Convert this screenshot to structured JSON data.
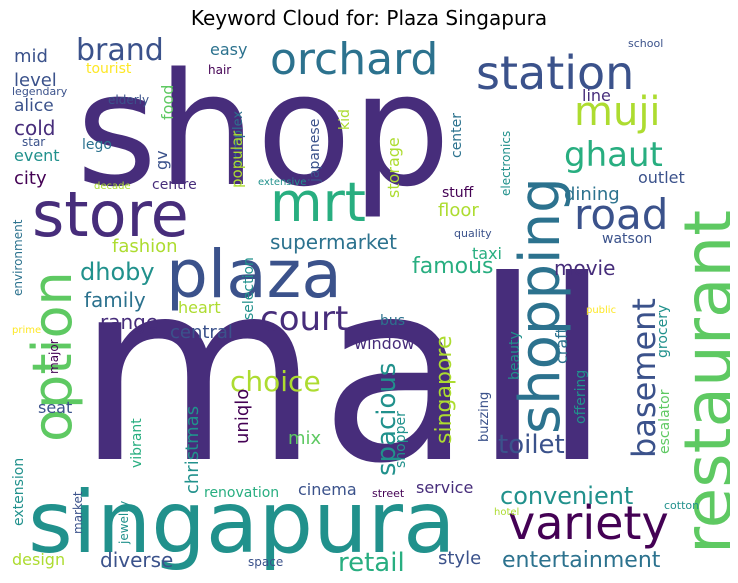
{
  "title": "Keyword Cloud for: Plaza Singapura",
  "colors": {
    "deep_purple": "#440154",
    "indigo": "#472d7b",
    "dark_blue": "#3b528b",
    "steel_blue": "#2c728e",
    "teal": "#21918c",
    "sea_green": "#28ae80",
    "green": "#5ec962",
    "lime": "#addc30",
    "yellow": "#fde725"
  },
  "words": {
    "mall": "mall",
    "shop": "shop",
    "singapura": "singapura",
    "restaurant": "restaurant",
    "option": "option",
    "plaza": "plaza",
    "store": "store",
    "shopping": "shopping",
    "orchard": "orchard",
    "station": "station",
    "mrt": "mrt",
    "variety": "variety",
    "road": "road",
    "muji": "muji",
    "ghaut": "ghaut",
    "brand": "brand",
    "court": "court",
    "basement": "basement",
    "convenient": "convenient",
    "choice": "choice",
    "spacious": "spacious",
    "toilet": "toilet",
    "entertainment": "entertainment",
    "retail": "retail",
    "supermarket": "supermarket",
    "dhoby": "dhoby",
    "famous": "famous",
    "range": "range",
    "family": "family",
    "fashion": "fashion",
    "central": "central",
    "movie": "movie",
    "singapore": "singapore",
    "diverse": "diverse",
    "christmas": "christmas",
    "uniqlo": "uniqlo",
    "cinema": "cinema",
    "service": "service",
    "style": "style",
    "design": "design",
    "heart": "heart",
    "mix": "mix",
    "window": "window",
    "dining": "dining",
    "outlet": "outlet",
    "floor": "floor",
    "city": "city",
    "event": "event",
    "cold": "cold",
    "alice": "alice",
    "level": "level",
    "mid": "mid",
    "tourist": "tourist",
    "food": "food",
    "easy": "easy",
    "hair": "hair",
    "line": "line",
    "kid": "kid",
    "japanese": "japanese",
    "storage": "storage",
    "center": "center",
    "electronics": "electronics",
    "stuff": "stuff",
    "quality": "quality",
    "taxi": "taxi",
    "watson": "watson",
    "grocery": "grocery",
    "escalator": "escalator",
    "offering": "offering",
    "craft": "craft",
    "beauty": "beauty",
    "buzzing": "buzzing",
    "shopper": "shopper",
    "bus": "bus",
    "public": "public",
    "cotton": "cotton",
    "hotel": "hotel",
    "street": "street",
    "space": "space",
    "renovation": "renovation",
    "jewelry": "jewelry",
    "market": "market",
    "vibrant": "vibrant",
    "extension": "extension",
    "seat": "seat",
    "major": "major",
    "prime": "prime",
    "environment": "environment",
    "decade": "decade",
    "extensive": "extensive",
    "centre": "centre",
    "gv": "gv",
    "complex": "complex",
    "popular": "popular",
    "selection": "selection",
    "lego": "lego",
    "star": "star",
    "legendary": "legendary",
    "elderly": "elderly",
    "school": "school"
  }
}
